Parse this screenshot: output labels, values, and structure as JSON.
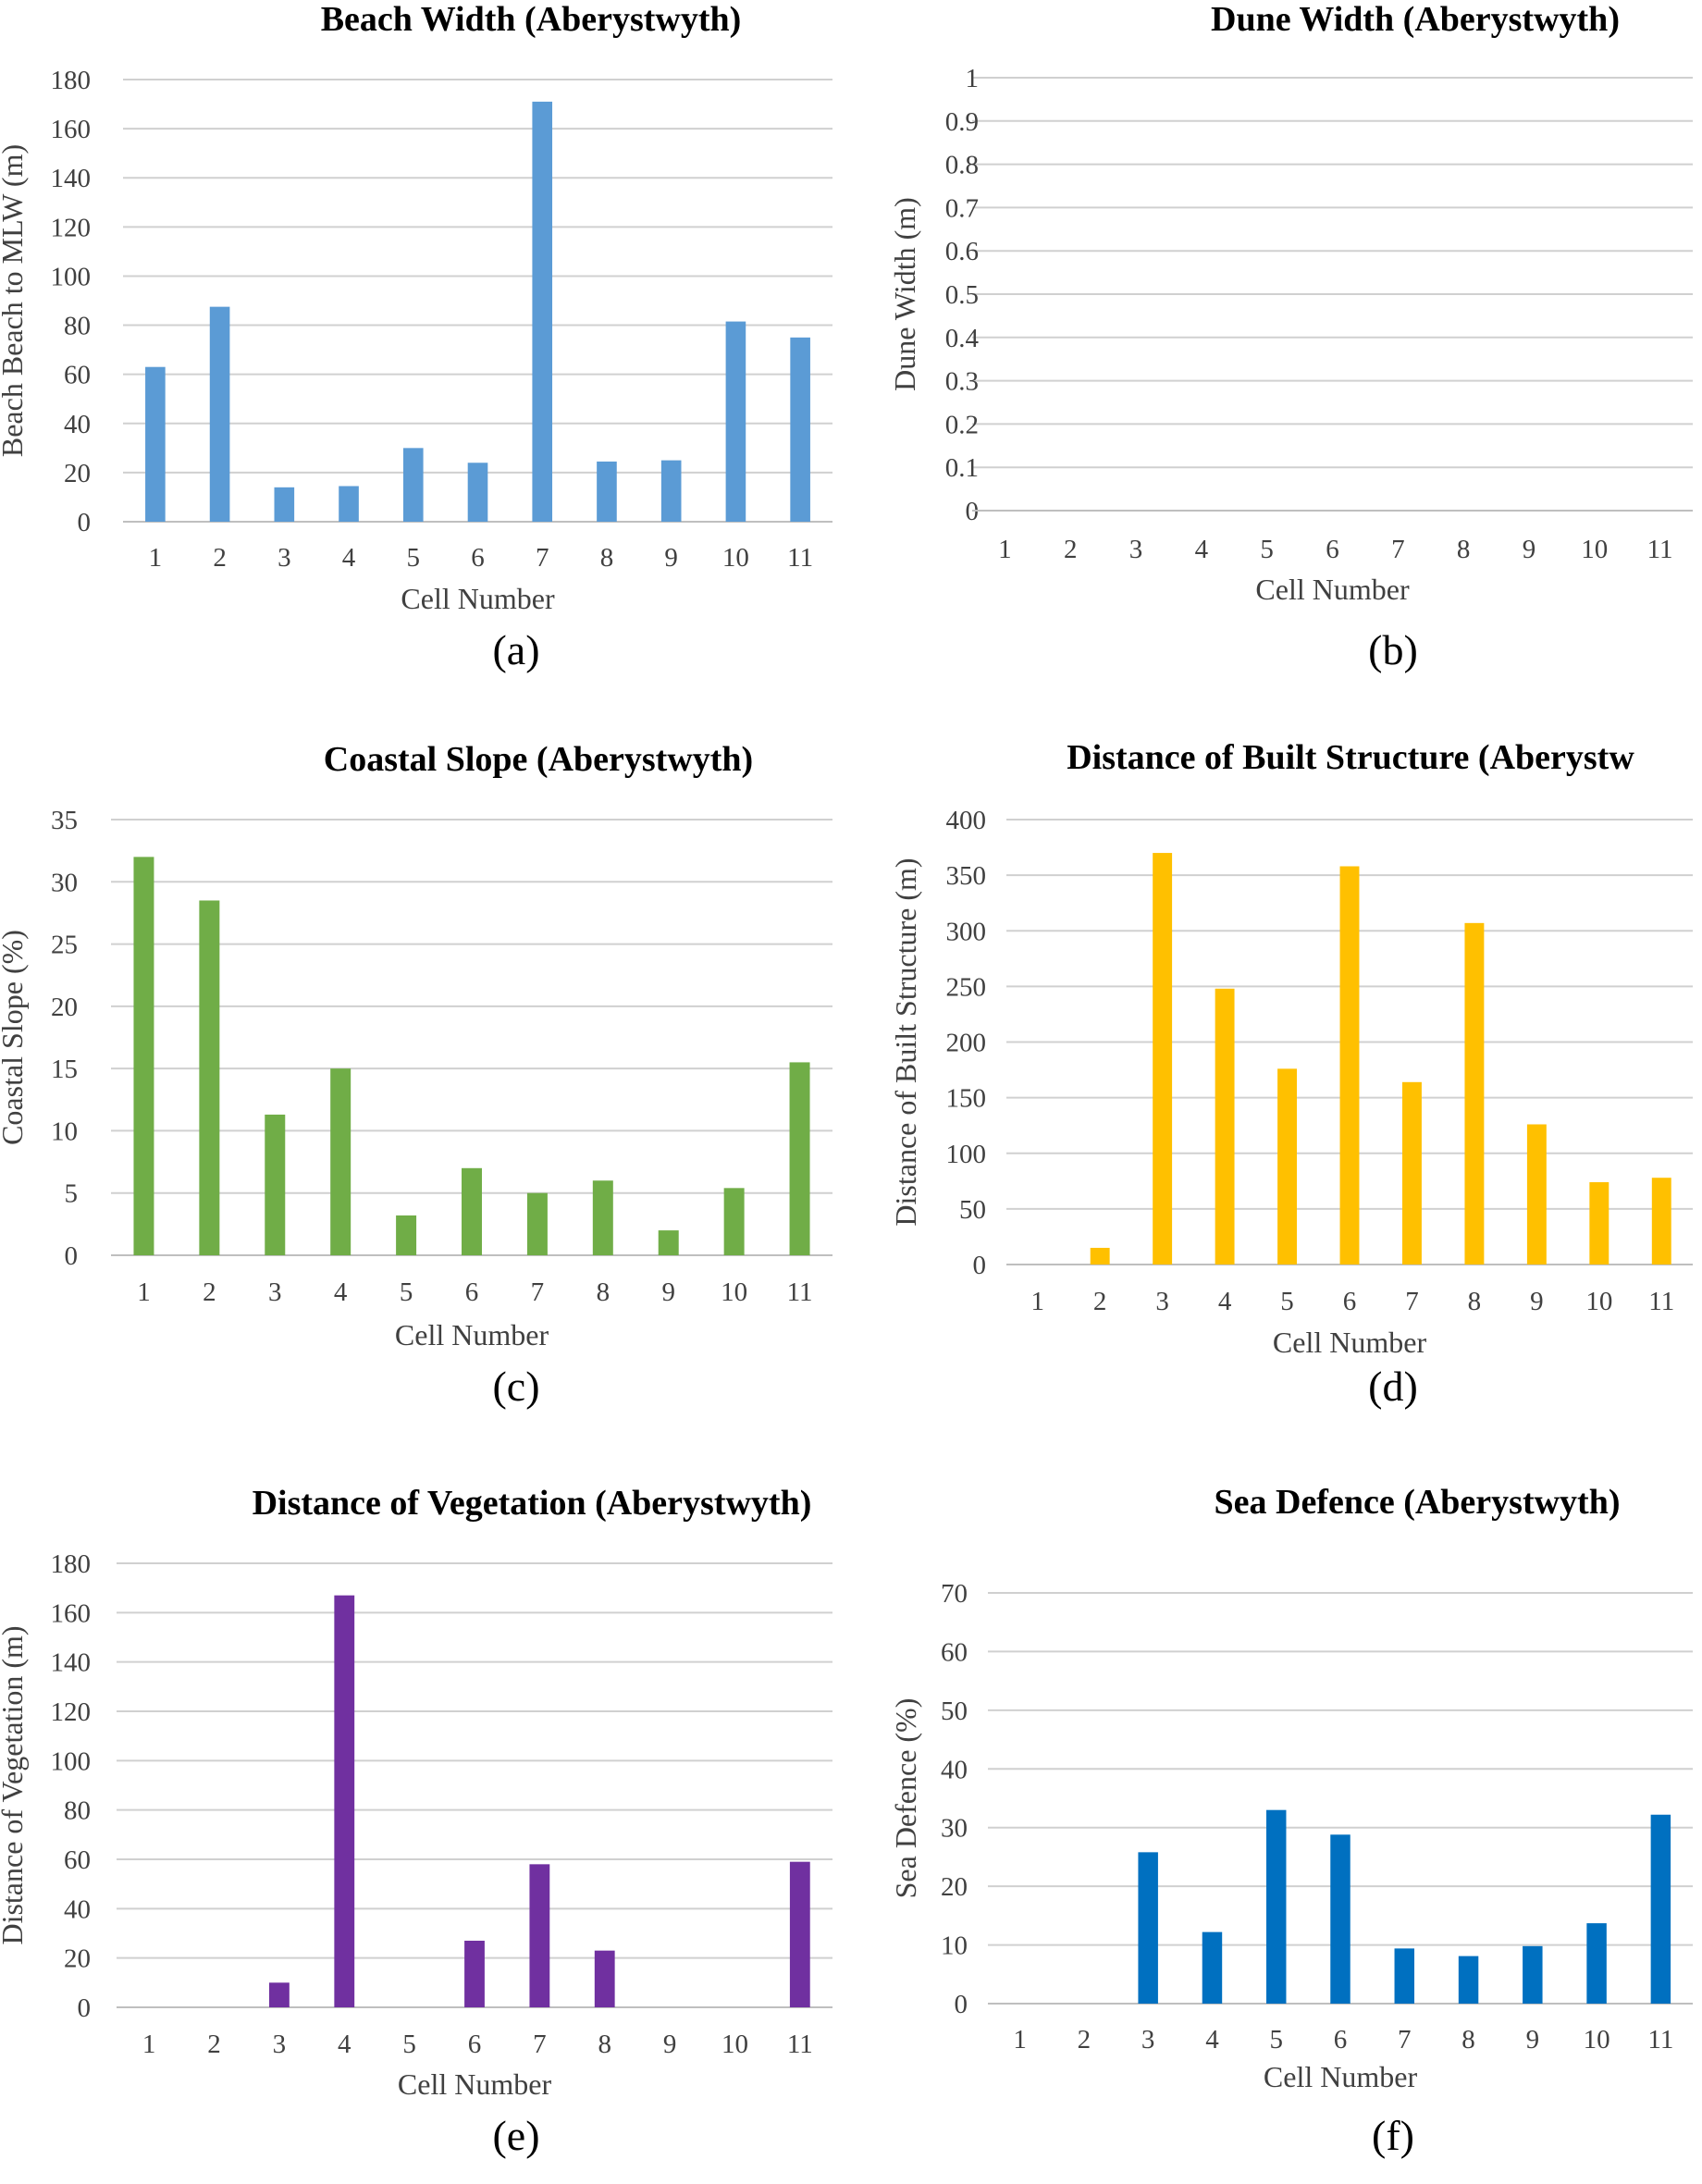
{
  "chart_data": [
    {
      "panel": "(a)",
      "type": "bar",
      "title": "Beach Width (Aberystwyth)",
      "xlabel": "Cell Number",
      "ylabel": "Beach Beach to MLW (m)",
      "color": "#5b9bd5",
      "ylim": [
        0,
        180
      ],
      "yticks": [
        "0",
        "20",
        "40",
        "60",
        "80",
        "100",
        "120",
        "140",
        "160",
        "180"
      ],
      "categories": [
        "1",
        "2",
        "3",
        "4",
        "5",
        "6",
        "7",
        "8",
        "9",
        "10",
        "11"
      ],
      "values": [
        63,
        87.5,
        14,
        14.5,
        30,
        24,
        171,
        24.5,
        25,
        81.5,
        75
      ]
    },
    {
      "panel": "(b)",
      "type": "bar",
      "title": "Dune Width (Aberystwyth)",
      "xlabel": "Cell Number",
      "ylabel": "Dune Width (m)",
      "color": "#5b9bd5",
      "ylim": [
        0,
        1
      ],
      "yticks": [
        "0",
        "0.1",
        "0.2",
        "0.3",
        "0.4",
        "0.5",
        "0.6",
        "0.7",
        "0.8",
        "0.9",
        "1"
      ],
      "categories": [
        "1",
        "2",
        "3",
        "4",
        "5",
        "6",
        "7",
        "8",
        "9",
        "10",
        "11"
      ],
      "values": [
        0,
        0,
        0,
        0,
        0,
        0,
        0,
        0,
        0,
        0,
        0
      ]
    },
    {
      "panel": "(c)",
      "type": "bar",
      "title": "Coastal Slope (Aberystwyth)",
      "xlabel": "Cell Number",
      "ylabel": "Coastal Slope (%)",
      "color": "#70ad47",
      "ylim": [
        0,
        35
      ],
      "yticks": [
        "0",
        "5",
        "10",
        "15",
        "20",
        "25",
        "30",
        "35"
      ],
      "categories": [
        "1",
        "2",
        "3",
        "4",
        "5",
        "6",
        "7",
        "8",
        "9",
        "10",
        "11"
      ],
      "values": [
        32,
        28.5,
        11.3,
        15,
        3.2,
        7,
        5,
        6,
        2,
        5.4,
        15.5
      ]
    },
    {
      "panel": "(d)",
      "type": "bar",
      "title": "Distance of Built Structure (Aberystw",
      "xlabel": "Cell Number",
      "ylabel": "Distance of Built Structure (m)",
      "color": "#ffc000",
      "ylim": [
        0,
        400
      ],
      "yticks": [
        "0",
        "50",
        "100",
        "150",
        "200",
        "250",
        "300",
        "350",
        "400"
      ],
      "categories": [
        "1",
        "2",
        "3",
        "4",
        "5",
        "6",
        "7",
        "8",
        "9",
        "10",
        "11"
      ],
      "values": [
        0,
        15,
        370,
        248,
        176,
        358,
        164,
        307,
        126,
        74,
        78
      ]
    },
    {
      "panel": "(e)",
      "type": "bar",
      "title": "Distance of Vegetation (Aberystwyth)",
      "xlabel": "Cell Number",
      "ylabel": "Distance of Vegetation (m)",
      "color": "#7030a0",
      "ylim": [
        0,
        180
      ],
      "yticks": [
        "0",
        "20",
        "40",
        "60",
        "80",
        "100",
        "120",
        "140",
        "160",
        "180"
      ],
      "categories": [
        "1",
        "2",
        "3",
        "4",
        "5",
        "6",
        "7",
        "8",
        "9",
        "10",
        "11"
      ],
      "values": [
        0,
        0,
        10,
        167,
        0,
        27,
        58,
        23,
        0,
        0,
        59
      ]
    },
    {
      "panel": "(f)",
      "type": "bar",
      "title": "Sea Defence (Aberystwyth)",
      "xlabel": "Cell Number",
      "ylabel": "Sea Defence (%)",
      "color": "#0070c0",
      "ylim": [
        0,
        70
      ],
      "yticks": [
        "0",
        "10",
        "20",
        "30",
        "40",
        "50",
        "60",
        "70"
      ],
      "categories": [
        "1",
        "2",
        "3",
        "4",
        "5",
        "6",
        "7",
        "8",
        "9",
        "10",
        "11"
      ],
      "values": [
        0,
        0,
        25.8,
        12.2,
        33,
        28.8,
        9.4,
        8.1,
        9.8,
        13.7,
        32.2
      ]
    }
  ]
}
